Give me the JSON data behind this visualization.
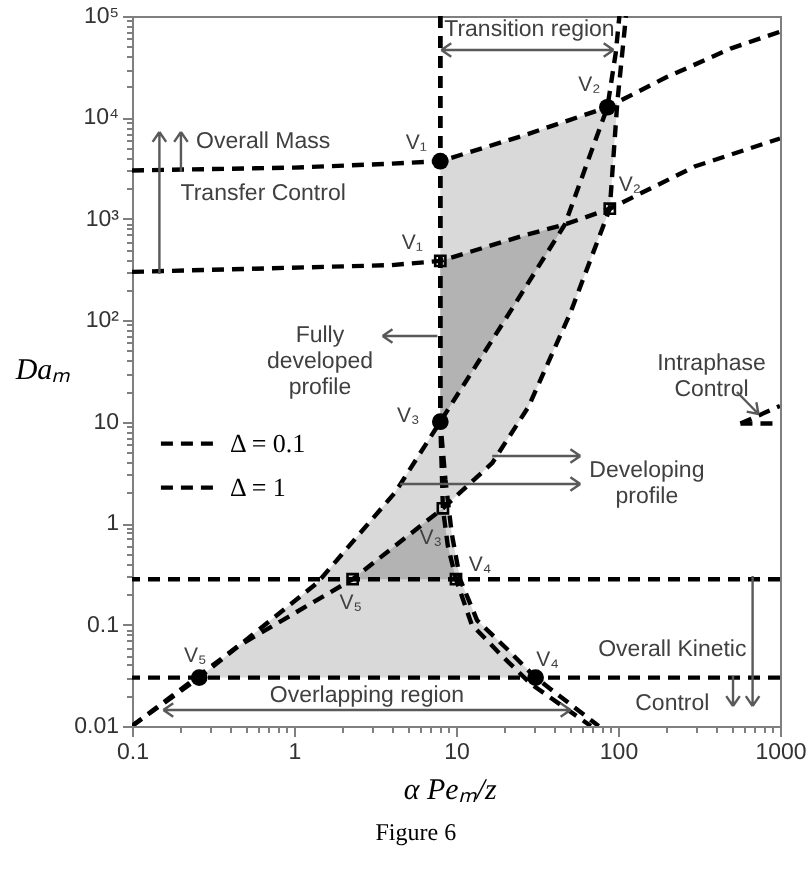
{
  "chart_data": {
    "type": "line",
    "xlabel": "α Peₘ/z",
    "ylabel": "Daₘ",
    "log": "xy",
    "legend": "left",
    "xlim": [
      0.1,
      1000
    ],
    "ylim": [
      0.01,
      100000
    ],
    "xticks": [
      0.1,
      {
        "value": 0.2,
        "label": null
      },
      {
        "value": 0.3,
        "label": null
      },
      {
        "value": 0.4,
        "label": null
      },
      {
        "value": 0.5,
        "label": null
      },
      {
        "value": 0.6,
        "label": null
      },
      {
        "value": 0.7,
        "label": null
      },
      {
        "value": 0.8,
        "label": null
      },
      {
        "value": 0.9,
        "label": null
      },
      1,
      {
        "value": 2,
        "label": null
      },
      {
        "value": 3,
        "label": null
      },
      {
        "value": 4,
        "label": null
      },
      {
        "value": 5,
        "label": null
      },
      {
        "value": 6,
        "label": null
      },
      {
        "value": 7,
        "label": null
      },
      {
        "value": 8,
        "label": null
      },
      {
        "value": 9,
        "label": null
      },
      10,
      {
        "value": 20,
        "label": null
      },
      {
        "value": 30,
        "label": null
      },
      {
        "value": 40,
        "label": null
      },
      {
        "value": 50,
        "label": null
      },
      {
        "value": 60,
        "label": null
      },
      {
        "value": 70,
        "label": null
      },
      {
        "value": 80,
        "label": null
      },
      {
        "value": 90,
        "label": null
      },
      100,
      {
        "value": 200,
        "label": null
      },
      {
        "value": 300,
        "label": null
      },
      {
        "value": 400,
        "label": null
      },
      {
        "value": 500,
        "label": null
      },
      {
        "value": 600,
        "label": null
      },
      {
        "value": 700,
        "label": null
      },
      {
        "value": 800,
        "label": null
      },
      {
        "value": 900,
        "label": null
      },
      1000
    ],
    "yticks": [
      0.01,
      {
        "value": 0.02,
        "label": null
      },
      {
        "value": 0.03,
        "label": null
      },
      {
        "value": 0.04,
        "label": null
      },
      {
        "value": 0.05,
        "label": null
      },
      {
        "value": 0.06,
        "label": null
      },
      {
        "value": 0.07,
        "label": null
      },
      {
        "value": 0.08,
        "label": null
      },
      {
        "value": 0.09,
        "label": null
      },
      0.1,
      {
        "value": 0.2,
        "label": null
      },
      {
        "value": 0.3,
        "label": null
      },
      {
        "value": 0.4,
        "label": null
      },
      {
        "value": 0.5,
        "label": null
      },
      {
        "value": 0.6,
        "label": null
      },
      {
        "value": 0.7,
        "label": null
      },
      {
        "value": 0.8,
        "label": null
      },
      {
        "value": 0.9,
        "label": null
      },
      1,
      {
        "value": 2,
        "label": null
      },
      {
        "value": 3,
        "label": null
      },
      {
        "value": 4,
        "label": null
      },
      {
        "value": 5,
        "label": null
      },
      {
        "value": 6,
        "label": null
      },
      {
        "value": 7,
        "label": null
      },
      {
        "value": 8,
        "label": null
      },
      {
        "value": 9,
        "label": null
      },
      10,
      {
        "value": 20,
        "label": null
      },
      {
        "value": 30,
        "label": null
      },
      {
        "value": 40,
        "label": null
      },
      {
        "value": 50,
        "label": null
      },
      {
        "value": 60,
        "label": null
      },
      {
        "value": 70,
        "label": null
      },
      {
        "value": 80,
        "label": null
      },
      {
        "value": 90,
        "label": null
      },
      {
        "value": 100,
        "label": "10²"
      },
      {
        "value": 200,
        "label": null
      },
      {
        "value": 300,
        "label": null
      },
      {
        "value": 400,
        "label": null
      },
      {
        "value": 500,
        "label": null
      },
      {
        "value": 600,
        "label": null
      },
      {
        "value": 700,
        "label": null
      },
      {
        "value": 800,
        "label": null
      },
      {
        "value": 900,
        "label": null
      },
      {
        "value": 1000,
        "label": "10³"
      },
      {
        "value": 2000,
        "label": null
      },
      {
        "value": 3000,
        "label": null
      },
      {
        "value": 4000,
        "label": null
      },
      {
        "value": 5000,
        "label": null
      },
      {
        "value": 6000,
        "label": null
      },
      {
        "value": 7000,
        "label": null
      },
      {
        "value": 8000,
        "label": null
      },
      {
        "value": 9000,
        "label": null
      },
      {
        "value": 10000,
        "label": "10⁴"
      },
      {
        "value": 20000,
        "label": null
      },
      {
        "value": 30000,
        "label": null
      },
      {
        "value": 40000,
        "label": null
      },
      {
        "value": 50000,
        "label": null
      },
      {
        "value": 60000,
        "label": null
      },
      {
        "value": 70000,
        "label": null
      },
      {
        "value": 80000,
        "label": null
      },
      {
        "value": 90000,
        "label": null
      },
      {
        "value": 100000,
        "label": "10⁵"
      }
    ],
    "series": [
      {
        "type": "area",
        "color": "#d9d9d9",
        "x": [
          0.26,
          1.4,
          4.2,
          8,
          9.4,
          10.6,
          13.5,
          21,
          31
        ],
        "values": [
          null,
          null,
          null,
          null,
          null,
          null,
          null,
          null,
          null
        ],
        "lower": [
          0.03,
          0.03,
          0.03,
          0.03,
          0.03,
          0.03,
          0.03,
          0.03,
          0.03
        ],
        "upper": [
          0.03,
          0.26,
          2,
          10,
          0.8,
          0.28,
          0.11,
          0.056,
          0.03
        ]
      },
      {
        "type": "area",
        "color": "#d9d9d9",
        "x": [
          8,
          8.3,
          16.7,
          28,
          51,
          89,
          99
        ],
        "values": [
          null,
          null,
          null,
          null,
          null,
          null,
          null
        ],
        "lower": [
          10,
          1.4,
          3.9,
          14,
          120,
          1260,
          14000
        ],
        "upper": [
          3700,
          3700,
          5300,
          6900,
          9500,
          12900,
          14000
        ]
      },
      {
        "type": "area",
        "color": "#b3b3b3",
        "x": [
          8,
          20,
          47
        ],
        "values": [
          null,
          null,
          null
        ],
        "lower": [
          10,
          100,
          880
        ],
        "upper": [
          385,
          600,
          880
        ]
      },
      {
        "type": "area",
        "color": "#b3b3b3",
        "x": [
          2.3,
          8.3,
          8.9,
          10
        ],
        "values": [
          null,
          null,
          null,
          null
        ],
        "lower": [
          0.28,
          0.28,
          0.28,
          0.28
        ],
        "upper": [
          0.28,
          1.4,
          0.6,
          0.28
        ]
      },
      {
        "type": "line",
        "name": "Δ = 0.1",
        "color": "#000000",
        "line_style": "dashed",
        "x": [
          0.1,
          1,
          4,
          8,
          26.6,
          86,
          200,
          500,
          1000,
          null,
          8,
          8,
          8.6,
          9.4,
          10.6,
          13.5,
          21,
          31,
          76,
          null,
          0.1,
          0.26,
          1.4,
          4.2,
          8,
          20,
          47,
          86,
          97,
          102,
          null,
          570,
          1000
        ],
        "values": [
          3000,
          3200,
          3500,
          3700,
          6700,
          12600,
          25000,
          48000,
          70000,
          null,
          100000,
          10,
          2.7,
          0.8,
          0.28,
          0.11,
          0.056,
          0.03,
          0.01,
          null,
          0.01,
          0.03,
          0.26,
          2,
          10,
          100,
          880,
          12600,
          44000,
          100000,
          null,
          9.6,
          14.3
        ]
      },
      {
        "type": "line",
        "name": "Δ = 1",
        "color": "#000000",
        "line_style": "dashed",
        "x": [
          0.1,
          4,
          8,
          26.6,
          47,
          89,
          300,
          1000,
          null,
          8,
          8,
          8.3,
          8.9,
          10,
          12.5,
          19,
          29,
          68,
          null,
          0.1,
          0.45,
          2.3,
          8.3,
          16.7,
          28,
          51,
          89,
          99,
          112,
          null,
          570,
          1000
        ],
        "values": [
          300,
          350,
          385,
          690,
          880,
          1260,
          3300,
          6200,
          null,
          100000,
          10,
          1.4,
          0.6,
          0.28,
          0.1,
          0.05,
          0.026,
          0.01,
          null,
          0.01,
          0.061,
          0.28,
          1.4,
          3.9,
          14,
          120,
          1260,
          14000,
          100000,
          null,
          9.6,
          9.6
        ]
      },
      {
        "type": "scatter",
        "color": "#000000",
        "marker": "circle",
        "x": [
          8,
          86,
          8,
          31,
          0.26
        ],
        "values": [
          3700,
          12600,
          10,
          0.03,
          0.03
        ]
      },
      {
        "type": "scatter",
        "color": "#000000",
        "marker": "square",
        "x": [
          8,
          89,
          8.3,
          10,
          2.3
        ],
        "values": [
          385,
          1260,
          1.4,
          0.28,
          0.28
        ]
      }
    ],
    "ref_lines": [
      {
        "axis": "y",
        "value": 0.28,
        "color": "#000000",
        "line_style": "dashed"
      },
      {
        "axis": "y",
        "value": 0.03,
        "color": "#000000",
        "line_style": "dashed"
      }
    ],
    "annotations": [
      "Transition region",
      "Overall Mass",
      "Transfer Control",
      "Fully developed profile",
      "Intraphase Control",
      "Developing profile",
      "Overall Kinetic",
      "Control",
      "Overlapping region",
      {
        "text": "V₁",
        "x": 8,
        "y": 3700
      },
      {
        "text": "V₂",
        "x": 86,
        "y": 12600
      },
      {
        "text": "V₁",
        "x": 8,
        "y": 385
      },
      {
        "text": "V₂",
        "x": 89,
        "y": 1260
      },
      {
        "text": "V₃",
        "x": 8,
        "y": 10
      },
      {
        "text": "V₃",
        "x": 8.3,
        "y": 1.4
      },
      {
        "text": "V₄",
        "x": 10,
        "y": 0.28
      },
      {
        "text": "V₅",
        "x": 2.3,
        "y": 0.28
      },
      {
        "text": "V₅",
        "x": 0.26,
        "y": 0.03
      },
      {
        "text": "V₄",
        "x": 31,
        "y": 0.03
      },
      "Figure 6"
    ]
  }
}
